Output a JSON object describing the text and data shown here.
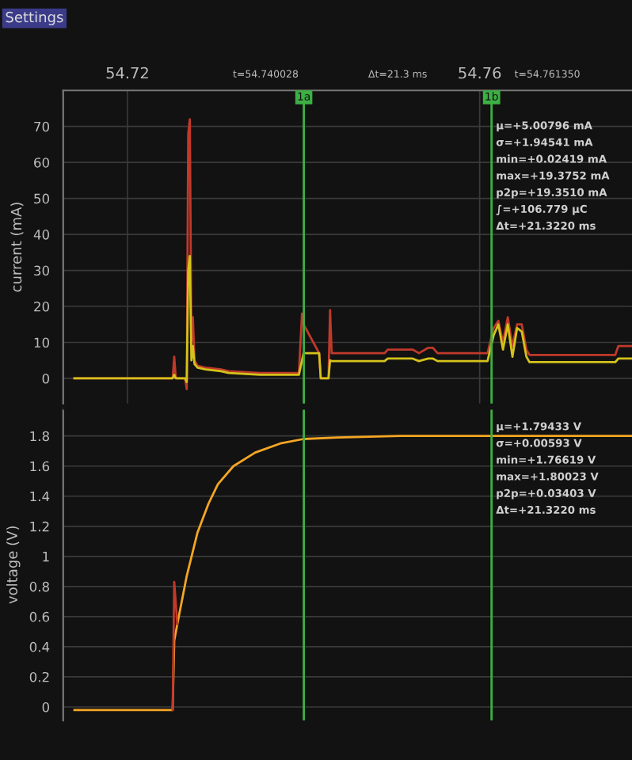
{
  "chart_data": [
    {
      "type": "line",
      "ylabel": "current (mA)",
      "x": [
        54.71398,
        54.72513,
        54.72531,
        54.72549,
        54.72655,
        54.72673,
        54.7269,
        54.72708,
        54.72726,
        54.72743,
        54.72761,
        54.72796,
        54.72885,
        54.73062,
        54.7315,
        54.73504,
        54.73947,
        54.73982,
        54.74,
        54.74177,
        54.74195,
        54.74283,
        54.74301,
        54.74319,
        54.7492,
        54.74956,
        54.75239,
        54.7531,
        54.75416,
        54.75469,
        54.75522,
        54.76089,
        54.76159,
        54.76212,
        54.76265,
        54.76319,
        54.76372,
        54.76425,
        54.76478,
        54.76531,
        54.76566,
        54.7754,
        54.77575,
        54.7773
      ],
      "series": [
        {
          "color": "#c0392b",
          "values": [
            0,
            0,
            6,
            0,
            0,
            -3,
            68,
            72,
            10,
            17,
            5,
            3.5,
            3,
            2.5,
            2,
            1.5,
            1.5,
            18,
            15,
            7,
            0,
            0,
            19,
            7,
            7,
            8,
            8,
            7,
            8.5,
            8.5,
            7,
            7,
            14,
            16,
            10,
            17,
            9,
            15,
            15,
            8,
            6.5,
            6.5,
            9,
            9
          ]
        },
        {
          "color": "#d4c21a",
          "values": [
            0,
            0,
            1,
            0,
            0,
            -1,
            30,
            34,
            5,
            9,
            4,
            3,
            2.5,
            2,
            1.5,
            1,
            1,
            5,
            7,
            7,
            0,
            0,
            5,
            4.8,
            4.8,
            5.5,
            5.5,
            4.8,
            5.5,
            5.5,
            4.8,
            4.8,
            12,
            15,
            8,
            15,
            6,
            14,
            13,
            6,
            4.5,
            4.5,
            5.5,
            5.5
          ]
        }
      ],
      "xlim": [
        54.7127,
        54.7773
      ],
      "xticks": [
        54.72,
        54.76
      ],
      "ylim": [
        -7,
        80
      ],
      "yticks": [
        0,
        10,
        20,
        30,
        40,
        50,
        60,
        70
      ],
      "grid": true,
      "ref_lines": [
        {
          "axis": "x",
          "value": 54.740028,
          "label": "1a",
          "color": "#3cb043"
        },
        {
          "axis": "x",
          "value": 54.76135,
          "label": "1b",
          "color": "#3cb043"
        }
      ],
      "annotations": [
        "Settings",
        "t=54.740028",
        "Δt=21.3 ms",
        "t=54.761350",
        "μ=+5.00796 mA",
        "σ=+1.94541 mA",
        "min=+0.02419 mA",
        "max=+19.3752 mA",
        "p2p=+19.3510 mA",
        "∫=+106.779 μC",
        "Δt=+21.3220 ms"
      ]
    },
    {
      "type": "line",
      "ylabel": "voltage (V)",
      "x": [
        54.71398,
        54.72513,
        54.72531,
        54.72566,
        54.72673,
        54.72796,
        54.7292,
        54.73027,
        54.73204,
        54.73451,
        54.73735,
        54.74,
        54.74389,
        54.75097,
        54.7773
      ],
      "series": [
        {
          "color": "#f5a623",
          "values": [
            -0.02,
            -0.02,
            0.44,
            0.55,
            0.87,
            1.16,
            1.35,
            1.48,
            1.6,
            1.69,
            1.75,
            1.78,
            1.79,
            1.8,
            1.8
          ]
        },
        {
          "color": "#c0392b",
          "values": [
            null,
            -0.02,
            0.83,
            0.55,
            null,
            null,
            null,
            null,
            null,
            null,
            null,
            null,
            null,
            null,
            null
          ]
        }
      ],
      "xlim": [
        54.7127,
        54.7773
      ],
      "ylim": [
        -0.09,
        1.98
      ],
      "yticks": [
        0,
        0.2,
        0.4,
        0.6,
        0.8,
        1,
        1.2,
        1.4,
        1.6,
        1.8
      ],
      "grid": true,
      "tick_labels": "y",
      "ref_lines": [
        {
          "axis": "x",
          "value": 54.740028,
          "color": "#3cb043"
        },
        {
          "axis": "x",
          "value": 54.76135,
          "color": "#3cb043"
        }
      ],
      "annotations": [
        "μ=+1.79433 V",
        "σ=+0.00593 V",
        "min=+1.76619 V",
        "max=+1.80023 V",
        "p2p=+0.03403 V",
        "Δt=+21.3220 ms"
      ]
    }
  ]
}
